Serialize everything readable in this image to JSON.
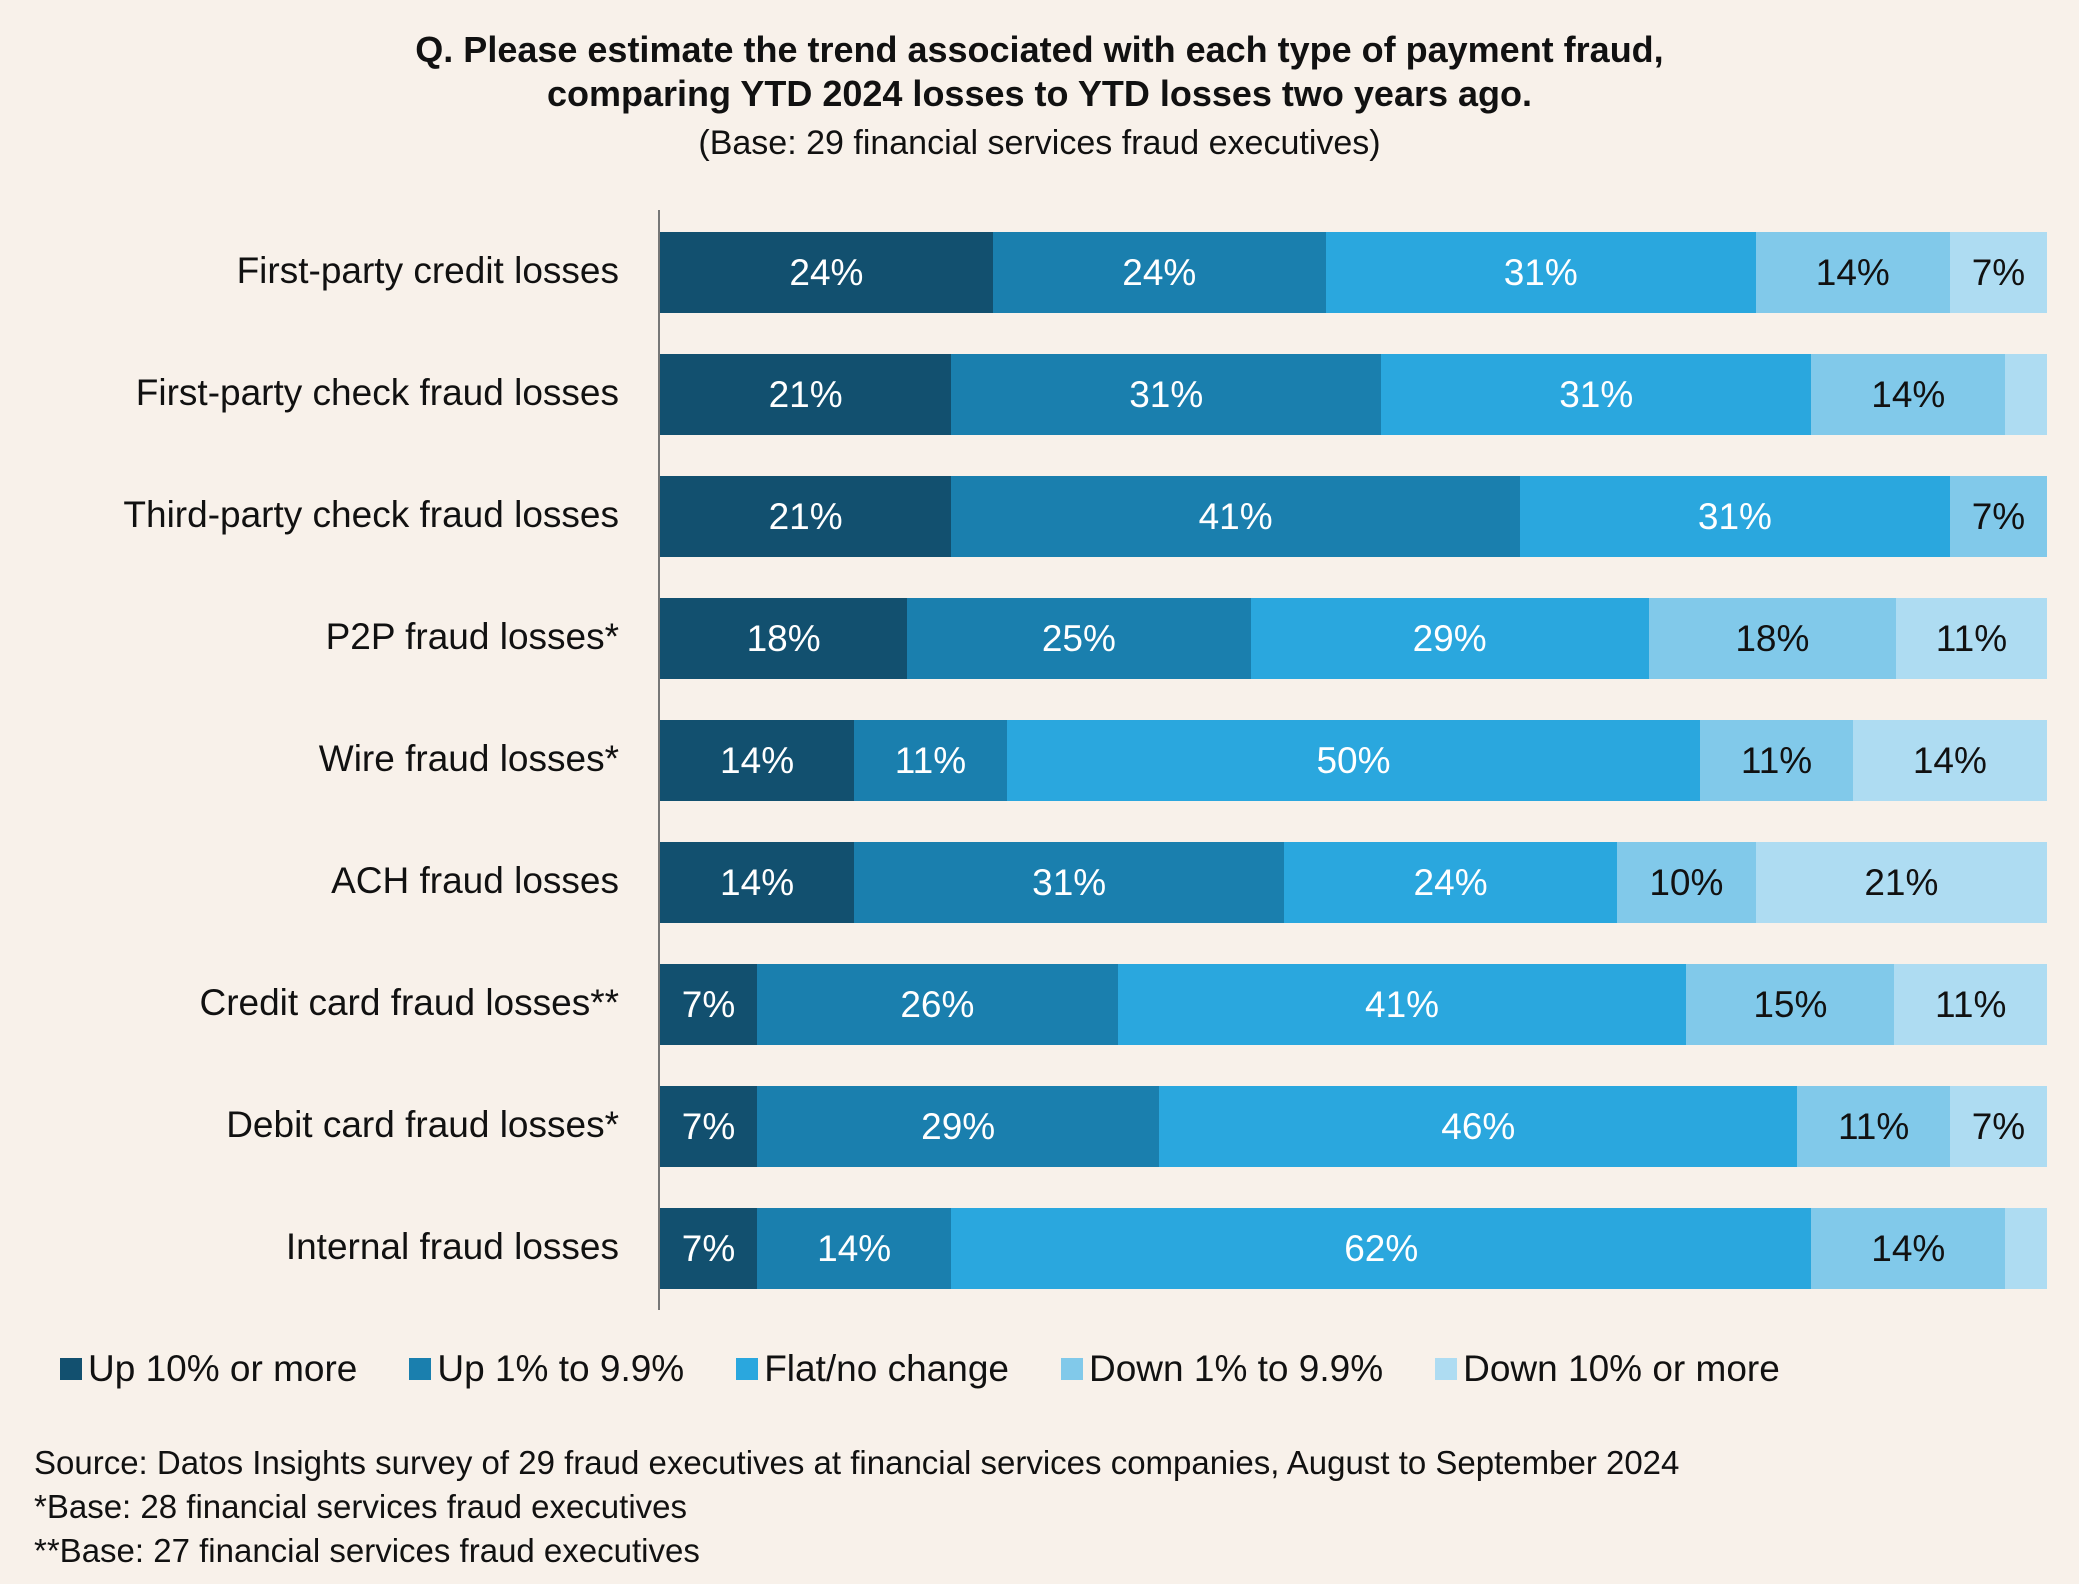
{
  "chart_data": {
    "type": "bar",
    "orientation": "horizontal-stacked-100",
    "title_line1": "Q. Please estimate the trend associated with each type of payment fraud,",
    "title_line2": "comparing YTD 2024 losses to YTD losses two years ago.",
    "subtitle": "(Base: 29 financial services fraud executives)",
    "categories": [
      "First-party credit losses",
      "First-party check fraud losses",
      "Third-party check fraud losses",
      "P2P fraud losses*",
      "Wire fraud losses*",
      "ACH fraud losses",
      "Credit card fraud losses**",
      "Debit card fraud losses*",
      "Internal fraud losses"
    ],
    "series": [
      {
        "name": "Up 10% or more",
        "color": "#12506f",
        "values": [
          24,
          21,
          21,
          18,
          14,
          14,
          7,
          7,
          7
        ],
        "labels": [
          "24%",
          "21%",
          "21%",
          "18%",
          "14%",
          "14%",
          "7%",
          "7%",
          "7%"
        ]
      },
      {
        "name": "Up 1% to 9.9%",
        "color": "#1a7fae",
        "values": [
          24,
          31,
          41,
          25,
          11,
          31,
          26,
          29,
          14
        ],
        "labels": [
          "24%",
          "31%",
          "41%",
          "25%",
          "11%",
          "31%",
          "26%",
          "29%",
          "14%"
        ]
      },
      {
        "name": "Flat/no change",
        "color": "#2aa7de",
        "values": [
          31,
          31,
          31,
          29,
          50,
          24,
          41,
          46,
          62
        ],
        "labels": [
          "31%",
          "31%",
          "31%",
          "29%",
          "50%",
          "24%",
          "41%",
          "46%",
          "62%"
        ]
      },
      {
        "name": "Down 1% to 9.9%",
        "color": "#81c9ea",
        "values": [
          14,
          14,
          7,
          18,
          11,
          10,
          15,
          11,
          14
        ],
        "labels": [
          "14%",
          "14%",
          "7%",
          "18%",
          "11%",
          "10%",
          "15%",
          "11%",
          "14%"
        ]
      },
      {
        "name": "Down 10% or more",
        "color": "#aedcf2",
        "values": [
          7,
          3,
          0,
          11,
          14,
          21,
          11,
          7,
          3
        ],
        "labels": [
          "7%",
          "",
          "",
          "11%",
          "14%",
          "21%",
          "11%",
          "7%",
          ""
        ]
      }
    ],
    "xlim": [
      0,
      100
    ],
    "legend_position": "bottom"
  },
  "footnotes": {
    "source": "Source: Datos Insights survey of 29 fraud executives at financial services companies, August to September 2024",
    "note1": "*Base: 28 financial services fraud executives",
    "note2": "**Base: 27 financial services fraud executives"
  }
}
